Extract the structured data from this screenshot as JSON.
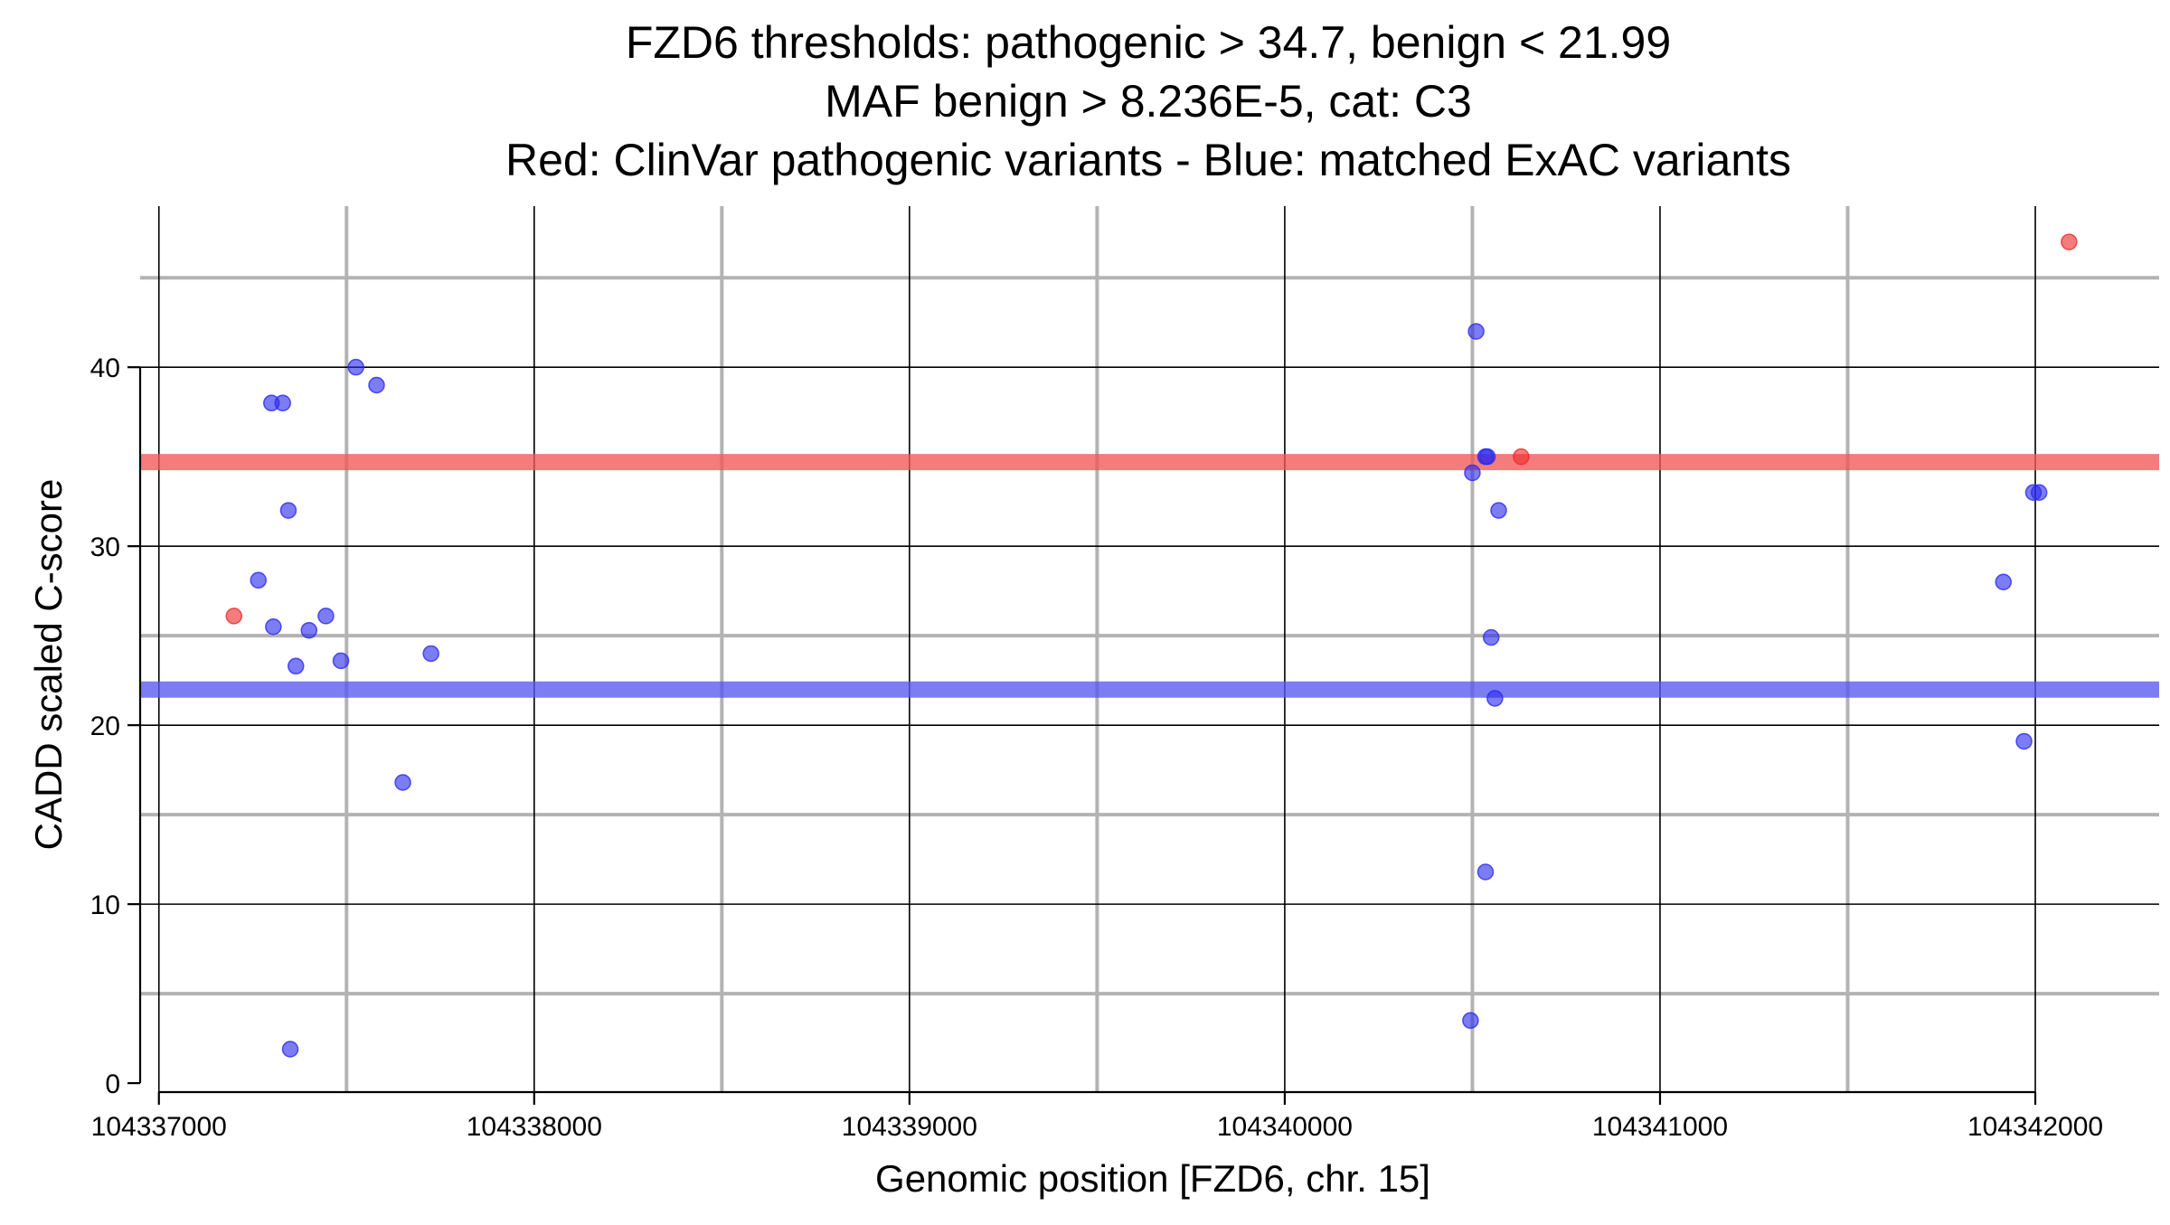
{
  "chart_data": {
    "type": "scatter",
    "title_lines": [
      "FZD6 thresholds: pathogenic > 34.7, benign < 21.99",
      "MAF benign > 8.236E-5, cat: C3",
      "Red: ClinVar pathogenic variants - Blue: matched ExAC variants"
    ],
    "xlabel": "Genomic position [FZD6, chr. 15]",
    "ylabel": "CADD scaled C-score",
    "xlim": [
      104336950,
      104342330
    ],
    "ylim": [
      -0.5,
      49
    ],
    "x_ticks": [
      104337000,
      104338000,
      104339000,
      104340000,
      104341000,
      104342000
    ],
    "x_tick_labels": [
      "104337000",
      "104338000",
      "104339000",
      "104340000",
      "104341000",
      "104342000"
    ],
    "y_ticks": [
      0,
      10,
      20,
      30,
      40
    ],
    "y_tick_labels": [
      "0",
      "10",
      "20",
      "30",
      "40"
    ],
    "x_minor_grid": [
      104337500,
      104338500,
      104339500,
      104340500,
      104341500
    ],
    "y_minor_grid": [
      5,
      15,
      25,
      45
    ],
    "grid": true,
    "thresholds": [
      {
        "label": "pathogenic",
        "value": 34.7,
        "color": "#f25757"
      },
      {
        "label": "benign",
        "value": 21.99,
        "color": "#5757f2"
      }
    ],
    "series": [
      {
        "color": "#ee2b2b",
        "points": [
          {
            "x": 104337200,
            "y": 26.1
          },
          {
            "x": 104340630,
            "y": 35.0
          },
          {
            "x": 104342090,
            "y": 47.0
          }
        ]
      },
      {
        "color": "#2b2bee",
        "points": [
          {
            "x": 104337265,
            "y": 28.1
          },
          {
            "x": 104337300,
            "y": 38.0
          },
          {
            "x": 104337305,
            "y": 25.5
          },
          {
            "x": 104337330,
            "y": 38.0
          },
          {
            "x": 104337345,
            "y": 32.0
          },
          {
            "x": 104337350,
            "y": 1.9
          },
          {
            "x": 104337365,
            "y": 23.3
          },
          {
            "x": 104337400,
            "y": 25.3
          },
          {
            "x": 104337445,
            "y": 26.1
          },
          {
            "x": 104337485,
            "y": 23.6
          },
          {
            "x": 104337525,
            "y": 40.0
          },
          {
            "x": 104337580,
            "y": 39.0
          },
          {
            "x": 104337650,
            "y": 16.8
          },
          {
            "x": 104337725,
            "y": 24.0
          },
          {
            "x": 104340495,
            "y": 3.5
          },
          {
            "x": 104340500,
            "y": 34.1
          },
          {
            "x": 104340510,
            "y": 42.0
          },
          {
            "x": 104340535,
            "y": 35.0
          },
          {
            "x": 104340540,
            "y": 35.0
          },
          {
            "x": 104340535,
            "y": 11.8
          },
          {
            "x": 104340550,
            "y": 24.9
          },
          {
            "x": 104340560,
            "y": 21.5
          },
          {
            "x": 104340570,
            "y": 32.0
          },
          {
            "x": 104341915,
            "y": 28.0
          },
          {
            "x": 104341970,
            "y": 19.1
          },
          {
            "x": 104341995,
            "y": 33.0
          },
          {
            "x": 104342010,
            "y": 33.0
          }
        ]
      }
    ]
  }
}
